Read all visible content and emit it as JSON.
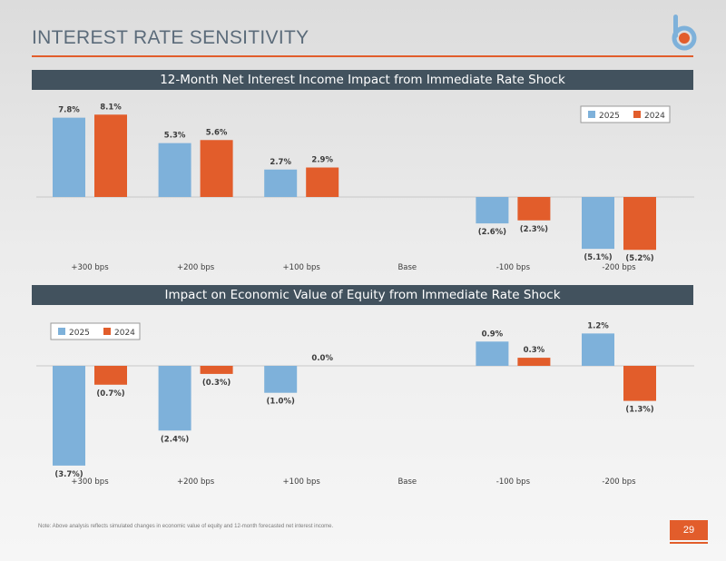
{
  "page": {
    "title": "INTEREST RATE SENSITIVITY",
    "footnote": "Note: Above analysis reflects simulated changes in economic value of equity and 12-month forecasted net interest income.",
    "page_number": "29"
  },
  "colors": {
    "accent": "#e25d2b",
    "banner": "#42525e",
    "series_2025": "#7eb1da",
    "series_2024": "#e25d2b"
  },
  "chart_data": [
    {
      "type": "bar",
      "title": "12-Month Net Interest Income Impact from Immediate Rate Shock",
      "categories": [
        "+300 bps",
        "+200 bps",
        "+100 bps",
        "Base",
        "-100 bps",
        "-200 bps"
      ],
      "series": [
        {
          "name": "2025",
          "values": [
            7.8,
            5.3,
            2.7,
            null,
            -2.6,
            -5.1
          ],
          "labels": [
            "7.8%",
            "5.3%",
            "2.7%",
            "",
            "(2.6%)",
            "(5.1%)"
          ]
        },
        {
          "name": "2024",
          "values": [
            8.1,
            5.6,
            2.9,
            null,
            -2.3,
            -5.2
          ],
          "labels": [
            "8.1%",
            "5.6%",
            "2.9%",
            "",
            "(2.3%)",
            "(5.2%)"
          ]
        }
      ],
      "legend": "top-right",
      "grid": false
    },
    {
      "type": "bar",
      "title": "Impact on Economic Value of Equity from Immediate Rate Shock",
      "categories": [
        "+300 bps",
        "+200 bps",
        "+100 bps",
        "Base",
        "-100 bps",
        "-200 bps"
      ],
      "series": [
        {
          "name": "2025",
          "values": [
            -3.7,
            -2.4,
            -1.0,
            null,
            0.9,
            1.2
          ],
          "labels": [
            "(3.7%)",
            "(2.4%)",
            "(1.0%)",
            "",
            "0.9%",
            "1.2%"
          ]
        },
        {
          "name": "2024",
          "values": [
            -0.7,
            -0.3,
            0.0,
            null,
            0.3,
            -1.3
          ],
          "labels": [
            "(0.7%)",
            "(0.3%)",
            "0.0%",
            "",
            "0.3%",
            "(1.3%)"
          ]
        }
      ],
      "legend": "top-left",
      "grid": false
    }
  ]
}
